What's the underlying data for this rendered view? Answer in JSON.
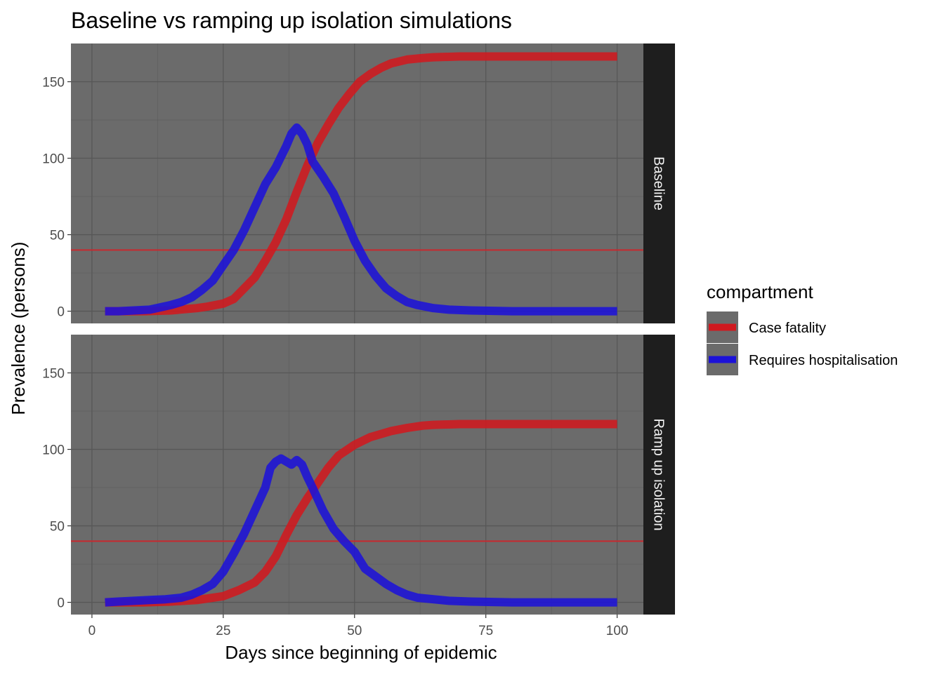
{
  "chart_data": {
    "type": "line",
    "title": "Baseline vs ramping up isolation simulations",
    "xlabel": "Days since beginning of epidemic",
    "ylabel": "Prevalence (persons)",
    "xlim": [
      -4,
      105
    ],
    "ylim": [
      -8,
      175
    ],
    "x_ticks": [
      "0",
      "25",
      "50",
      "75",
      "100"
    ],
    "y_ticks": [
      "0",
      "50",
      "100",
      "150"
    ],
    "grid": true,
    "legend": {
      "title": "compartment",
      "position": "right",
      "entries": [
        "Case fatality",
        "Requires hospitalisation"
      ]
    },
    "colors": {
      "case_fatality": "#d0191f",
      "requires_hospitalisation": "#1c12d8",
      "threshold_line": "#c8282e",
      "panel_background": "#6b6b6b",
      "strip_background": "#1e1e1e"
    },
    "panels": [
      {
        "strip_label": "Baseline",
        "threshold": 40,
        "series": [
          {
            "name": "Case fatality",
            "x": [
              2.5,
              5,
              10,
              15,
              20,
              22,
              25,
              27,
              29,
              31,
              33,
              35,
              37,
              39,
              41,
              43,
              45,
              47,
              49,
              51,
              53,
              55,
              57,
              60,
              63,
              65,
              70,
              75,
              80,
              90,
              100
            ],
            "y": [
              0,
              0,
              0,
              0.5,
              2,
              3,
              5,
              8,
              15,
              22,
              33,
              45,
              60,
              78,
              95,
              110,
              122,
              133,
              142,
              150,
              155,
              159,
              162,
              164.5,
              165.5,
              166,
              166.5,
              166.5,
              166.5,
              166.5,
              166.5
            ]
          },
          {
            "name": "Requires hospitalisation",
            "x": [
              2.5,
              5,
              8,
              11,
              13,
              15,
              17,
              19,
              21,
              23,
              25,
              27,
              29,
              31,
              33,
              35,
              37,
              38,
              39,
              40,
              41,
              42,
              44,
              46,
              48,
              50,
              52,
              54,
              56,
              58,
              60,
              62,
              65,
              68,
              72,
              80,
              90,
              100
            ],
            "y": [
              0,
              0,
              0.5,
              1,
              2.5,
              4,
              6,
              9,
              14,
              20,
              30,
              40,
              53,
              68,
              83,
              94,
              108,
              116,
              120,
              116,
              109,
              98,
              88,
              77,
              62,
              46,
              33,
              23,
              15,
              10,
              6,
              4,
              2,
              1,
              0.5,
              0,
              0,
              0
            ]
          }
        ]
      },
      {
        "strip_label": "Ramp up isolation",
        "threshold": 40,
        "series": [
          {
            "name": "Case fatality",
            "x": [
              2.5,
              5,
              10,
              15,
              20,
              25,
              28,
              31,
              33,
              35,
              37,
              39,
              41,
              43,
              45,
              47,
              50,
              53,
              57,
              60,
              63,
              65,
              70,
              75,
              80,
              90,
              100
            ],
            "y": [
              0,
              0,
              0,
              0.5,
              1.5,
              4,
              8,
              13,
              20,
              30,
              44,
              57,
              68,
              78,
              88,
              96,
              103,
              108,
              112,
              114,
              115.5,
              116,
              116.5,
              116.5,
              116.5,
              116.5,
              116.5
            ]
          },
          {
            "name": "Requires hospitalisation",
            "x": [
              2.5,
              5,
              8,
              11,
              14,
              17,
              19,
              21,
              23,
              25,
              27,
              29,
              31,
              33,
              34,
              35,
              36,
              37,
              38,
              39,
              40,
              41,
              42,
              44,
              46,
              48,
              50,
              52,
              54,
              56,
              58,
              60,
              62,
              65,
              68,
              72,
              80,
              90,
              95,
              100
            ],
            "y": [
              0,
              0.5,
              1,
              1.5,
              2,
              3,
              5,
              8,
              12,
              20,
              32,
              45,
              60,
              75,
              88,
              92,
              94,
              92,
              90,
              93,
              90,
              82,
              75,
              60,
              48,
              40,
              33,
              22,
              17,
              12,
              8,
              5,
              3,
              2,
              1,
              0.5,
              0,
              0,
              0,
              0
            ]
          }
        ]
      }
    ]
  }
}
